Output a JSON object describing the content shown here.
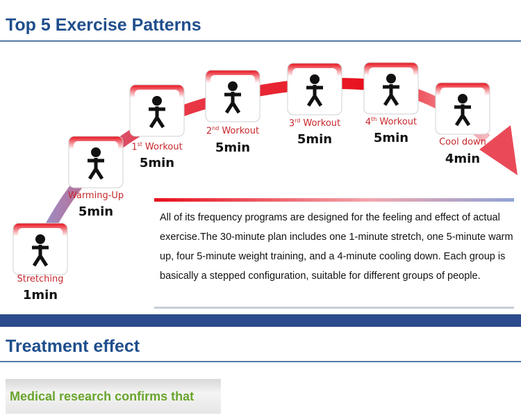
{
  "header": {
    "title": "Top 5 Exercise Patterns"
  },
  "steps": [
    {
      "label": "Stretching",
      "duration": "1min"
    },
    {
      "label": "Warming-Up",
      "duration": "5min"
    },
    {
      "number": "1",
      "sup": "st",
      "word": "Workout",
      "duration": "5min"
    },
    {
      "number": "2",
      "sup": "nd",
      "word": "Workout",
      "duration": "5min"
    },
    {
      "number": "3",
      "sup": "rd",
      "word": "Workout",
      "duration": "5min"
    },
    {
      "number": "4",
      "sup": "th",
      "word": "Workout",
      "duration": "5min"
    },
    {
      "label": "Cool down",
      "duration": "4min"
    }
  ],
  "description": "All of its frequency programs are designed for the feeling and effect of actual exercise.The 30-minute plan includes one 1-minute stretch, one 5-minute warm up, four 5-minute weight training, and a 4-minute cooling down. Each group is basically a stepped configuration, suitable for different groups of people.",
  "section": {
    "title": "Treatment effect"
  },
  "callout": {
    "text": "Medical research confirms that"
  }
}
